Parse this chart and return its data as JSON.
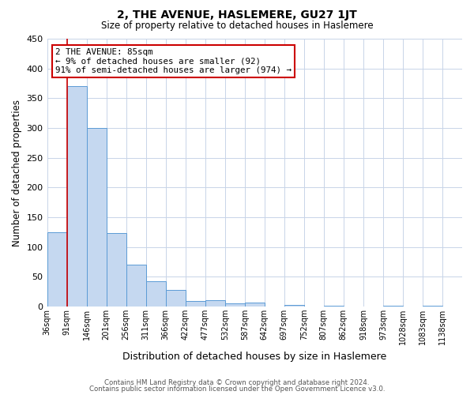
{
  "title": "2, THE AVENUE, HASLEMERE, GU27 1JT",
  "subtitle": "Size of property relative to detached houses in Haslemere",
  "xlabel": "Distribution of detached houses by size in Haslemere",
  "ylabel": "Number of detached properties",
  "bin_labels": [
    "36sqm",
    "91sqm",
    "146sqm",
    "201sqm",
    "256sqm",
    "311sqm",
    "366sqm",
    "422sqm",
    "477sqm",
    "532sqm",
    "587sqm",
    "642sqm",
    "697sqm",
    "752sqm",
    "807sqm",
    "862sqm",
    "918sqm",
    "973sqm",
    "1028sqm",
    "1083sqm",
    "1138sqm"
  ],
  "bar_heights": [
    125,
    370,
    300,
    123,
    70,
    43,
    28,
    9,
    10,
    5,
    6,
    0,
    3,
    0,
    2,
    0,
    0,
    2,
    0,
    2,
    0
  ],
  "bar_color": "#c5d8f0",
  "bar_edge_color": "#5b9bd5",
  "property_line_x": 1,
  "annotation_line1": "2 THE AVENUE: 85sqm",
  "annotation_line2": "← 9% of detached houses are smaller (92)",
  "annotation_line3": "91% of semi-detached houses are larger (974) →",
  "annotation_box_color": "#ffffff",
  "annotation_box_edge_color": "#cc0000",
  "property_line_color": "#cc0000",
  "ylim": [
    0,
    450
  ],
  "background_color": "#ffffff",
  "grid_color": "#c8d4e8",
  "footer_line1": "Contains HM Land Registry data © Crown copyright and database right 2024.",
  "footer_line2": "Contains public sector information licensed under the Open Government Licence v3.0."
}
